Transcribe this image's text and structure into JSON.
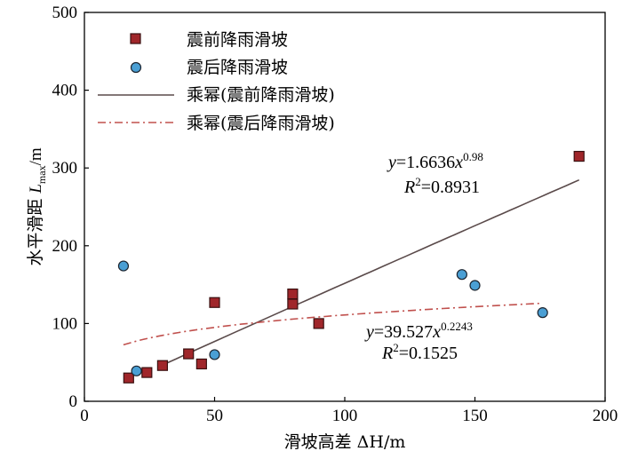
{
  "chart_data": {
    "type": "scatter",
    "xlabel": "滑坡高差 ΔH/m",
    "ylabel": {
      "prefix": "水平滑距 ",
      "var": "L",
      "sub": "max",
      "unit": "/m"
    },
    "xlim": [
      0,
      200
    ],
    "ylim": [
      0,
      500
    ],
    "xticks": [
      0,
      50,
      100,
      150,
      200
    ],
    "yticks": [
      0,
      100,
      200,
      300,
      400,
      500
    ],
    "grid": false,
    "legend_position": "top-left",
    "series": [
      {
        "name": "震前降雨滑坡",
        "marker": "square",
        "color": "#a0262a",
        "points": [
          [
            17,
            30
          ],
          [
            24,
            37
          ],
          [
            30,
            46
          ],
          [
            40,
            61
          ],
          [
            45,
            48
          ],
          [
            50,
            127
          ],
          [
            80,
            138
          ],
          [
            80,
            125
          ],
          [
            90,
            100
          ],
          [
            190,
            315
          ]
        ]
      },
      {
        "name": "震后降雨滑坡",
        "marker": "circle",
        "color": "#4a9fd4",
        "points": [
          [
            15,
            174
          ],
          [
            20,
            39
          ],
          [
            50,
            60
          ],
          [
            145,
            163
          ],
          [
            150,
            149
          ],
          [
            176,
            114
          ]
        ]
      }
    ],
    "fits": [
      {
        "name": "乘幂(震前降雨滑坡)",
        "style": "solid",
        "color": "#5a4a4a",
        "a": 1.6636,
        "b": 0.98,
        "x_range": [
          30,
          190
        ],
        "equation": {
          "lhs": "y",
          "coef": "=1.6636",
          "var": "x",
          "exp": "0.98"
        },
        "r2": {
          "lhs": "R",
          "exp": "2",
          "rhs": "=0.8931"
        }
      },
      {
        "name": "乘幂(震后降雨滑坡)",
        "style": "dashdot",
        "color": "#c0504d",
        "a": 39.527,
        "b": 0.2243,
        "x_range": [
          15,
          175
        ],
        "equation": {
          "lhs": "y",
          "coef": "=39.527",
          "var": "x",
          "exp": "0.2243"
        },
        "r2": {
          "lhs": "R",
          "exp": "2",
          "rhs": "=0.1525"
        }
      }
    ]
  }
}
